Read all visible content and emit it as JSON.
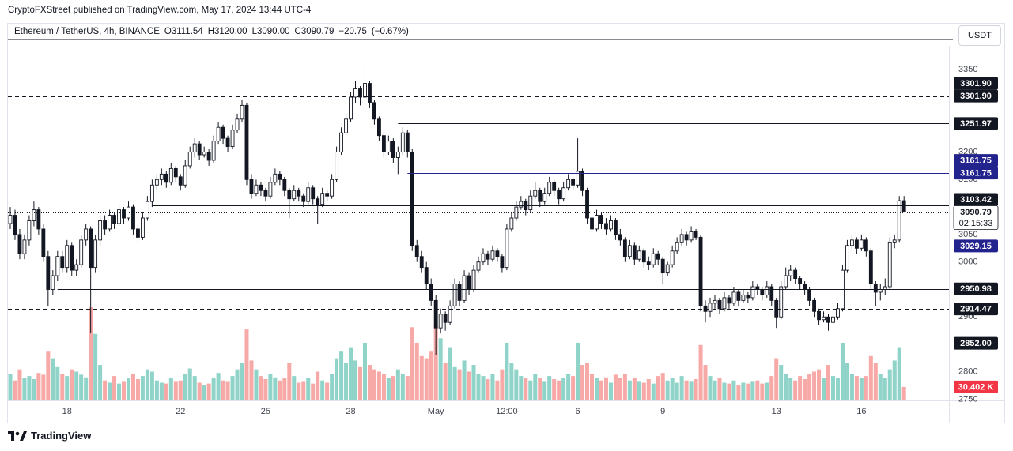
{
  "chart_data": {
    "type": "candlestick",
    "publisher": "CryptoFXStreet published on TradingView.com, May 17, 2024 13:44 UTC-4",
    "title": "Ethereum / TetherUS, 4h, BINANCE",
    "ohlc_legend": [
      {
        "value": 3111.54,
        "label": "O3111.54"
      },
      {
        "value": 3120,
        "label": "H3120.00"
      },
      {
        "value": 3090,
        "label": "L3090.00"
      },
      {
        "value": 3090.79,
        "label": "C3090.79"
      },
      {
        "value": -20.75,
        "label": "−20.75"
      },
      {
        "value": -0.67,
        "label": "(−0.67%)"
      }
    ],
    "currency": "USDT",
    "brand": "TradingView",
    "up_color": "#ffffff",
    "down_color": "#131722",
    "volume_up_color": "#8fd3c9",
    "volume_down_color": "#f7a9a7",
    "xlim": [
      -0.5,
      198.5
    ],
    "ylim": [
      2748,
      3402
    ],
    "grid": false,
    "xticks": [
      {
        "value": 12,
        "label": "18"
      },
      {
        "value": 36,
        "label": "22"
      },
      {
        "value": 54,
        "label": "25"
      },
      {
        "value": 72,
        "label": "28"
      },
      {
        "value": 90,
        "label": "May"
      },
      {
        "value": 105,
        "label": "12:00"
      },
      {
        "value": 120,
        "label": "6"
      },
      {
        "value": 138,
        "label": "9"
      },
      {
        "value": 162,
        "label": "13"
      },
      {
        "value": 180,
        "label": "16"
      }
    ],
    "yticks": [
      2750,
      2800,
      2900,
      3000,
      3050,
      3150,
      3200,
      3350
    ],
    "levels": [
      {
        "value": 3301.9,
        "labels": [
          "3301.90",
          "3301.90"
        ],
        "style": "dashed",
        "color": "#131722"
      },
      {
        "value": 3251.97,
        "labels": [
          "3251.97"
        ],
        "from": 82,
        "style": "solid",
        "color": "#131722"
      },
      {
        "value": 3161.75,
        "labels": [
          "3161.75",
          "3161.75"
        ],
        "from": 84,
        "style": "solid",
        "color": "#23238e"
      },
      {
        "value": 3103.42,
        "labels": [
          "3103.42"
        ],
        "from": 30,
        "style": "solid",
        "color": "#131722"
      },
      {
        "value": 3029.15,
        "labels": [
          "3029.15"
        ],
        "from": 88,
        "style": "solid",
        "color": "#23238e"
      },
      {
        "value": 2950.98,
        "labels": [
          "2950.98"
        ],
        "from": 10,
        "style": "solid",
        "color": "#131722"
      },
      {
        "value": 2914.47,
        "labels": [
          "2914.47"
        ],
        "style": "dashed",
        "color": "#131722"
      },
      {
        "value": 2852,
        "labels": [
          "2852.00"
        ],
        "style": "dashed",
        "color": "#131722"
      }
    ],
    "current_price": {
      "value": 3090.79,
      "countdown": "02:15:33"
    },
    "volume_label": {
      "value": 30.402,
      "label": "30.402 K"
    },
    "candles": [
      [
        3070,
        3100,
        3060,
        3085
      ],
      [
        3085,
        3095,
        3040,
        3050
      ],
      [
        3050,
        3060,
        3005,
        3015
      ],
      [
        3015,
        3050,
        3005,
        3040
      ],
      [
        3040,
        3085,
        3030,
        3075
      ],
      [
        3075,
        3110,
        3065,
        3095
      ],
      [
        3095,
        3100,
        3050,
        3060
      ],
      [
        3060,
        3070,
        3000,
        3010
      ],
      [
        3010,
        3020,
        2920,
        2950
      ],
      [
        2950,
        2985,
        2940,
        2975
      ],
      [
        2975,
        3020,
        2965,
        3010
      ],
      [
        3010,
        3020,
        2980,
        2990
      ],
      [
        2990,
        3040,
        2980,
        3030
      ],
      [
        3030,
        3035,
        2975,
        2985
      ],
      [
        2985,
        3005,
        2975,
        2995
      ],
      [
        2995,
        3050,
        2990,
        3040
      ],
      [
        3040,
        3070,
        3030,
        3060
      ],
      [
        3060,
        3065,
        2870,
        2990
      ],
      [
        2990,
        3050,
        2980,
        3040
      ],
      [
        3040,
        3085,
        3030,
        3075
      ],
      [
        3075,
        3085,
        3050,
        3060
      ],
      [
        3060,
        3095,
        3055,
        3085
      ],
      [
        3085,
        3090,
        3060,
        3070
      ],
      [
        3070,
        3105,
        3065,
        3095
      ],
      [
        3095,
        3100,
        3070,
        3080
      ],
      [
        3080,
        3110,
        3075,
        3100
      ],
      [
        3100,
        3105,
        3050,
        3060
      ],
      [
        3060,
        3070,
        3035,
        3045
      ],
      [
        3045,
        3090,
        3040,
        3080
      ],
      [
        3080,
        3120,
        3075,
        3110
      ],
      [
        3110,
        3150,
        3100,
        3140
      ],
      [
        3140,
        3160,
        3130,
        3150
      ],
      [
        3150,
        3170,
        3140,
        3160
      ],
      [
        3160,
        3165,
        3135,
        3145
      ],
      [
        3145,
        3180,
        3140,
        3170
      ],
      [
        3170,
        3175,
        3145,
        3155
      ],
      [
        3155,
        3160,
        3130,
        3140
      ],
      [
        3140,
        3185,
        3135,
        3175
      ],
      [
        3175,
        3210,
        3170,
        3200
      ],
      [
        3200,
        3225,
        3190,
        3215
      ],
      [
        3215,
        3220,
        3185,
        3195
      ],
      [
        3195,
        3210,
        3190,
        3200
      ],
      [
        3200,
        3205,
        3175,
        3185
      ],
      [
        3185,
        3230,
        3180,
        3220
      ],
      [
        3220,
        3255,
        3215,
        3245
      ],
      [
        3245,
        3250,
        3215,
        3225
      ],
      [
        3225,
        3230,
        3200,
        3210
      ],
      [
        3210,
        3250,
        3205,
        3240
      ],
      [
        3240,
        3270,
        3235,
        3260
      ],
      [
        3260,
        3295,
        3255,
        3285
      ],
      [
        3285,
        3290,
        3140,
        3150
      ],
      [
        3150,
        3160,
        3115,
        3125
      ],
      [
        3125,
        3150,
        3120,
        3140
      ],
      [
        3140,
        3145,
        3120,
        3130
      ],
      [
        3130,
        3135,
        3110,
        3120
      ],
      [
        3120,
        3155,
        3115,
        3145
      ],
      [
        3145,
        3170,
        3140,
        3160
      ],
      [
        3160,
        3165,
        3140,
        3150
      ],
      [
        3150,
        3155,
        3120,
        3130
      ],
      [
        3130,
        3135,
        3080,
        3115
      ],
      [
        3115,
        3140,
        3110,
        3130
      ],
      [
        3130,
        3135,
        3110,
        3120
      ],
      [
        3120,
        3125,
        3100,
        3110
      ],
      [
        3110,
        3145,
        3105,
        3135
      ],
      [
        3135,
        3140,
        3105,
        3115
      ],
      [
        3115,
        3120,
        3070,
        3105
      ],
      [
        3105,
        3135,
        3100,
        3125
      ],
      [
        3125,
        3130,
        3110,
        3120
      ],
      [
        3120,
        3160,
        3115,
        3150
      ],
      [
        3150,
        3210,
        3145,
        3200
      ],
      [
        3200,
        3245,
        3195,
        3235
      ],
      [
        3235,
        3270,
        3230,
        3260
      ],
      [
        3260,
        3310,
        3255,
        3300
      ],
      [
        3300,
        3330,
        3290,
        3315
      ],
      [
        3315,
        3320,
        3285,
        3300
      ],
      [
        3300,
        3355,
        3295,
        3325
      ],
      [
        3325,
        3330,
        3280,
        3290
      ],
      [
        3290,
        3295,
        3250,
        3260
      ],
      [
        3260,
        3265,
        3220,
        3230
      ],
      [
        3230,
        3235,
        3190,
        3200
      ],
      [
        3200,
        3230,
        3195,
        3220
      ],
      [
        3220,
        3225,
        3180,
        3190
      ],
      [
        3190,
        3210,
        3160,
        3200
      ],
      [
        3200,
        3245,
        3195,
        3235
      ],
      [
        3235,
        3240,
        3190,
        3200
      ],
      [
        3200,
        3205,
        3020,
        3030
      ],
      [
        3030,
        3040,
        3000,
        3010
      ],
      [
        3010,
        3020,
        2980,
        2990
      ],
      [
        2990,
        3000,
        2950,
        2960
      ],
      [
        2960,
        2970,
        2920,
        2930
      ],
      [
        2930,
        2940,
        2830,
        2880
      ],
      [
        2880,
        2915,
        2870,
        2905
      ],
      [
        2905,
        2910,
        2875,
        2890
      ],
      [
        2890,
        2930,
        2885,
        2920
      ],
      [
        2920,
        2970,
        2915,
        2960
      ],
      [
        2960,
        2965,
        2920,
        2930
      ],
      [
        2930,
        2985,
        2925,
        2975
      ],
      [
        2975,
        2980,
        2940,
        2950
      ],
      [
        2950,
        2995,
        2945,
        2985
      ],
      [
        2985,
        3010,
        2980,
        3000
      ],
      [
        3000,
        3025,
        2995,
        3015
      ],
      [
        3015,
        3020,
        2995,
        3005
      ],
      [
        3005,
        3030,
        3000,
        3020
      ],
      [
        3020,
        3025,
        3000,
        3010
      ],
      [
        3010,
        3015,
        2980,
        2990
      ],
      [
        2990,
        3070,
        2985,
        3060
      ],
      [
        3060,
        3090,
        3055,
        3080
      ],
      [
        3080,
        3110,
        3075,
        3100
      ],
      [
        3100,
        3120,
        3095,
        3110
      ],
      [
        3110,
        3115,
        3085,
        3095
      ],
      [
        3095,
        3130,
        3090,
        3120
      ],
      [
        3120,
        3145,
        3115,
        3130
      ],
      [
        3130,
        3135,
        3100,
        3110
      ],
      [
        3110,
        3135,
        3105,
        3125
      ],
      [
        3125,
        3155,
        3120,
        3145
      ],
      [
        3145,
        3150,
        3120,
        3130
      ],
      [
        3130,
        3135,
        3105,
        3115
      ],
      [
        3115,
        3145,
        3110,
        3135
      ],
      [
        3135,
        3160,
        3130,
        3150
      ],
      [
        3150,
        3155,
        3130,
        3140
      ],
      [
        3140,
        3225,
        3135,
        3165
      ],
      [
        3165,
        3170,
        3120,
        3130
      ],
      [
        3130,
        3135,
        3070,
        3080
      ],
      [
        3080,
        3090,
        3050,
        3060
      ],
      [
        3060,
        3095,
        3055,
        3085
      ],
      [
        3085,
        3090,
        3060,
        3070
      ],
      [
        3070,
        3080,
        3050,
        3060
      ],
      [
        3060,
        3085,
        3055,
        3075
      ],
      [
        3075,
        3080,
        3040,
        3050
      ],
      [
        3050,
        3060,
        3030,
        3040
      ],
      [
        3040,
        3045,
        3000,
        3010
      ],
      [
        3010,
        3040,
        3005,
        3030
      ],
      [
        3030,
        3035,
        2995,
        3005
      ],
      [
        3005,
        3030,
        3000,
        3020
      ],
      [
        3020,
        3025,
        2990,
        3000
      ],
      [
        3000,
        3010,
        2985,
        2995
      ],
      [
        2995,
        3025,
        2990,
        3015
      ],
      [
        3015,
        3020,
        2995,
        3005
      ],
      [
        3005,
        3010,
        2960,
        2980
      ],
      [
        2980,
        3000,
        2975,
        2995
      ],
      [
        2995,
        3030,
        2990,
        3020
      ],
      [
        3020,
        3045,
        3015,
        3035
      ],
      [
        3035,
        3060,
        3030,
        3050
      ],
      [
        3050,
        3055,
        3030,
        3040
      ],
      [
        3040,
        3065,
        3035,
        3055
      ],
      [
        3055,
        3060,
        3040,
        3045
      ],
      [
        3045,
        3050,
        2910,
        2920
      ],
      [
        2920,
        2930,
        2890,
        2910
      ],
      [
        2910,
        2935,
        2900,
        2925
      ],
      [
        2925,
        2940,
        2915,
        2930
      ],
      [
        2930,
        2935,
        2905,
        2915
      ],
      [
        2915,
        2945,
        2910,
        2935
      ],
      [
        2935,
        2940,
        2915,
        2925
      ],
      [
        2925,
        2955,
        2920,
        2945
      ],
      [
        2945,
        2950,
        2920,
        2930
      ],
      [
        2930,
        2950,
        2925,
        2940
      ],
      [
        2940,
        2945,
        2925,
        2935
      ],
      [
        2935,
        2965,
        2930,
        2955
      ],
      [
        2955,
        2960,
        2940,
        2950
      ],
      [
        2950,
        2955,
        2930,
        2940
      ],
      [
        2940,
        2965,
        2935,
        2955
      ],
      [
        2955,
        2960,
        2920,
        2930
      ],
      [
        2930,
        2935,
        2880,
        2900
      ],
      [
        2900,
        2965,
        2895,
        2955
      ],
      [
        2955,
        2990,
        2950,
        2975
      ],
      [
        2975,
        2995,
        2965,
        2985
      ],
      [
        2985,
        2990,
        2960,
        2970
      ],
      [
        2970,
        2975,
        2950,
        2960
      ],
      [
        2960,
        2965,
        2940,
        2950
      ],
      [
        2950,
        2955,
        2920,
        2930
      ],
      [
        2930,
        2935,
        2900,
        2910
      ],
      [
        2910,
        2915,
        2885,
        2895
      ],
      [
        2895,
        2910,
        2890,
        2900
      ],
      [
        2900,
        2905,
        2875,
        2890
      ],
      [
        2890,
        2910,
        2880,
        2900
      ],
      [
        2900,
        2925,
        2895,
        2915
      ],
      [
        2915,
        2995,
        2910,
        2985
      ],
      [
        2985,
        3040,
        2980,
        3030
      ],
      [
        3030,
        3050,
        3020,
        3040
      ],
      [
        3040,
        3045,
        3015,
        3025
      ],
      [
        3025,
        3050,
        3020,
        3040
      ],
      [
        3040,
        3045,
        3010,
        3020
      ],
      [
        3020,
        3025,
        2950,
        2960
      ],
      [
        2960,
        2965,
        2920,
        2945
      ],
      [
        2945,
        2960,
        2930,
        2950
      ],
      [
        2950,
        2970,
        2940,
        2955
      ],
      [
        2955,
        3045,
        2950,
        3035
      ],
      [
        3035,
        3050,
        3025,
        3040
      ],
      [
        3040,
        3120,
        3035,
        3111.54
      ],
      [
        3111.54,
        3120,
        3090,
        3090.79
      ]
    ],
    "volume": [
      60,
      45,
      70,
      50,
      55,
      48,
      62,
      58,
      110,
      95,
      75,
      60,
      55,
      70,
      65,
      58,
      52,
      210,
      150,
      80,
      45,
      40,
      55,
      38,
      42,
      50,
      60,
      48,
      55,
      70,
      65,
      45,
      40,
      38,
      50,
      42,
      45,
      60,
      72,
      55,
      40,
      35,
      38,
      50,
      62,
      45,
      42,
      55,
      70,
      85,
      160,
      90,
      70,
      55,
      48,
      60,
      52,
      45,
      50,
      85,
      55,
      40,
      42,
      50,
      38,
      65,
      45,
      40,
      60,
      95,
      110,
      85,
      120,
      90,
      75,
      130,
      80,
      70,
      65,
      60,
      50,
      55,
      70,
      60,
      55,
      165,
      130,
      100,
      95,
      110,
      170,
      140,
      85,
      120,
      75,
      70,
      90,
      65,
      80,
      60,
      55,
      48,
      60,
      45,
      70,
      130,
      85,
      70,
      55,
      50,
      45,
      60,
      50,
      42,
      55,
      48,
      45,
      50,
      60,
      55,
      130,
      80,
      85,
      60,
      50,
      45,
      52,
      40,
      58,
      50,
      60,
      45,
      50,
      42,
      40,
      48,
      38,
      55,
      62,
      45,
      50,
      40,
      55,
      45,
      42,
      48,
      125,
      80,
      55,
      45,
      50,
      40,
      38,
      45,
      35,
      40,
      38,
      42,
      45,
      38,
      40,
      55,
      95,
      80,
      60,
      50,
      45,
      55,
      48,
      60,
      65,
      70,
      50,
      80,
      55,
      50,
      130,
      85,
      60,
      55,
      50,
      55,
      100,
      85,
      60,
      50,
      70,
      90,
      120,
      30.402
    ]
  }
}
